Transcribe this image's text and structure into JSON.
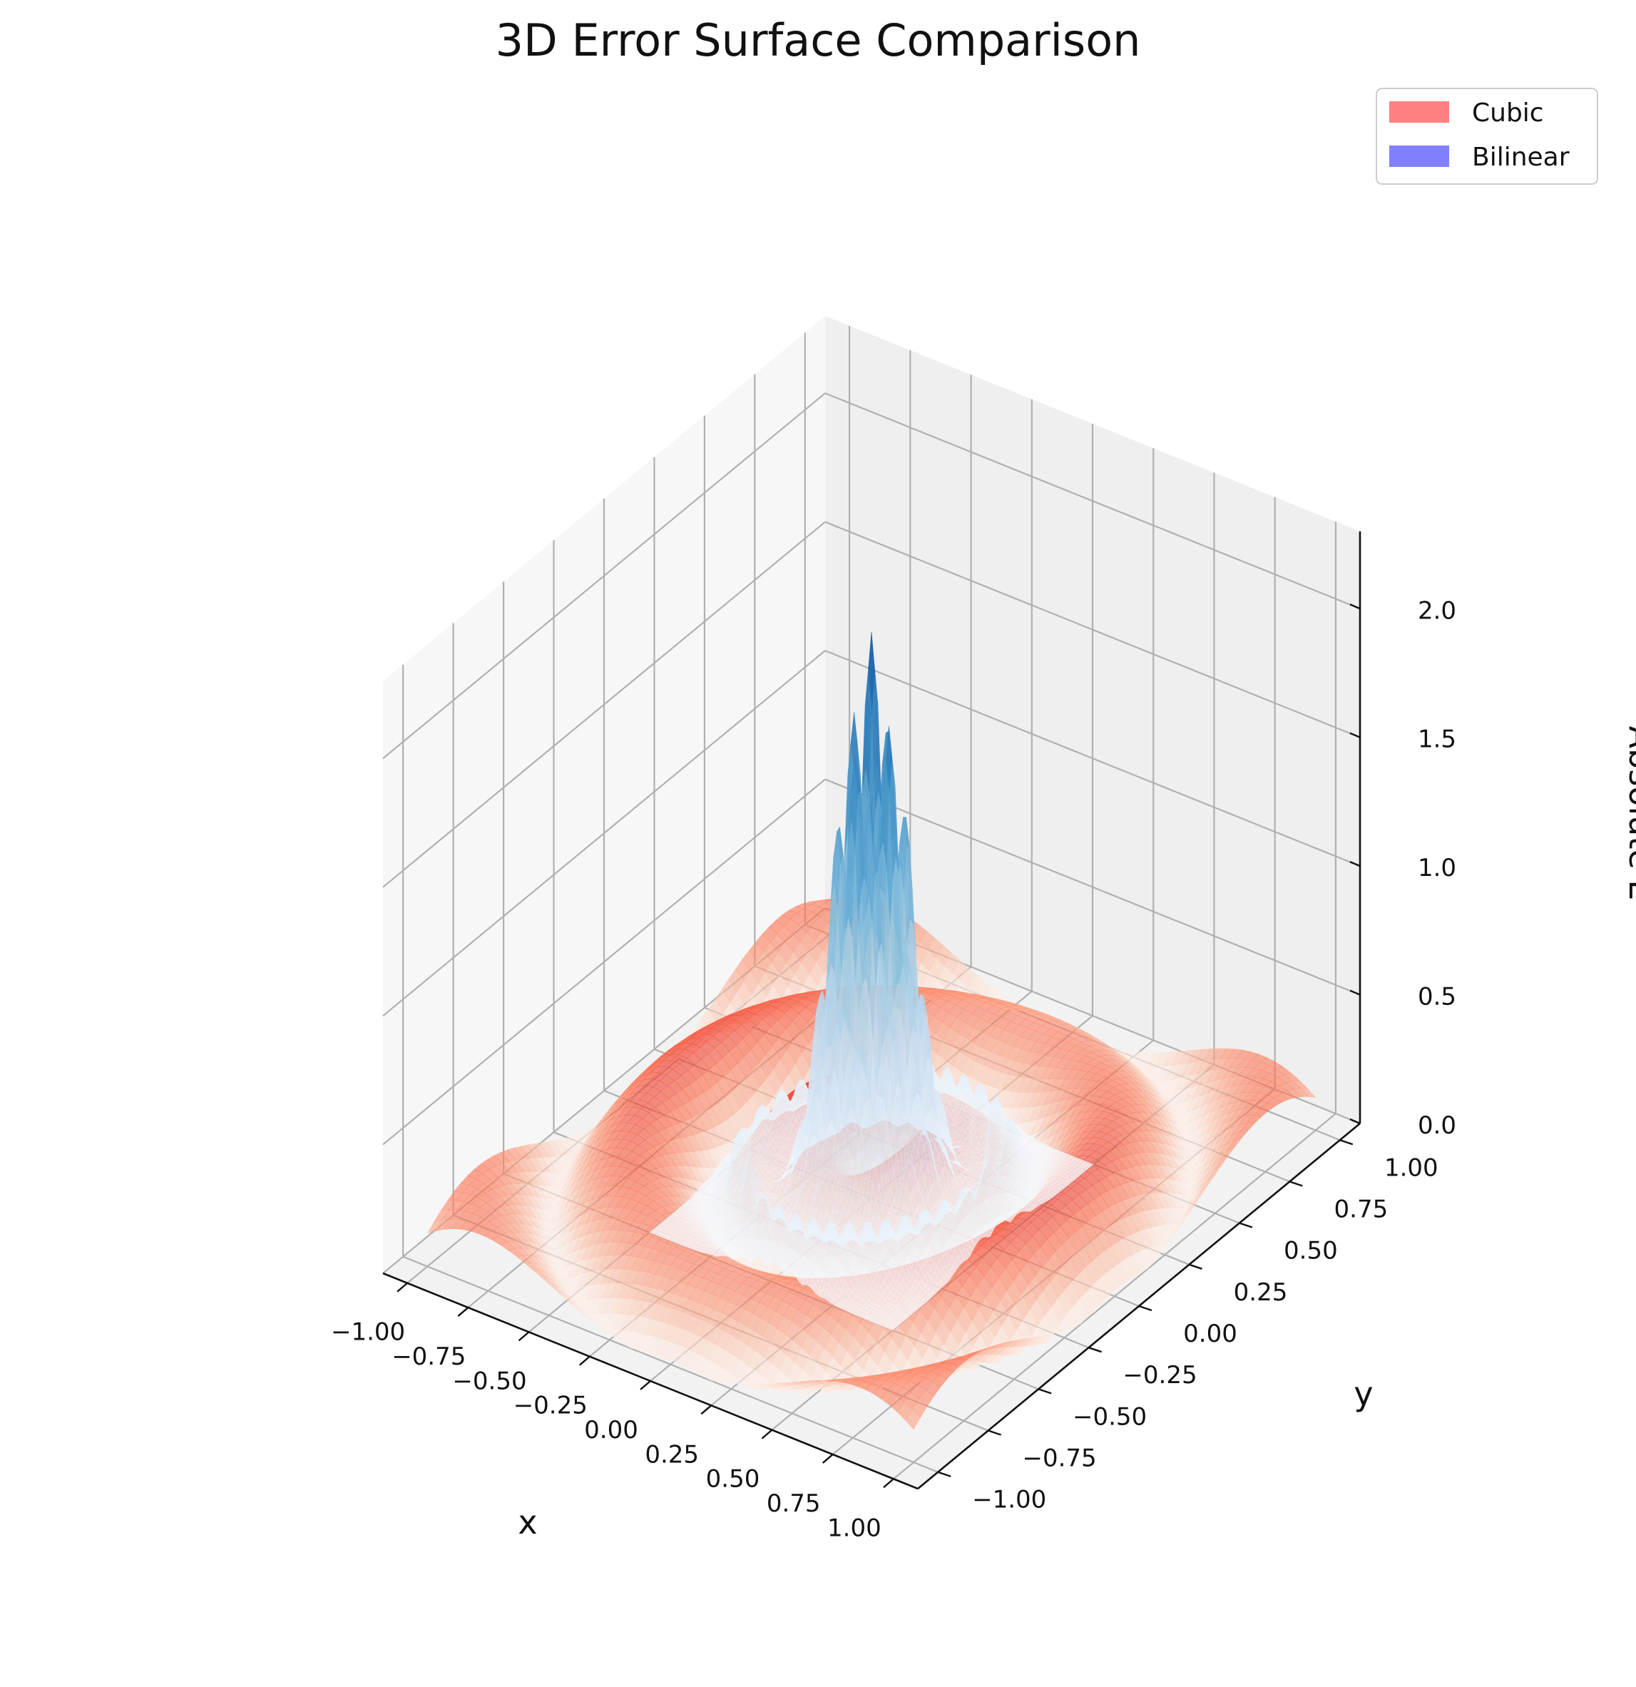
{
  "chart_data": {
    "type": "surface3d",
    "title": "3D Error Surface Comparison",
    "xlabel": "x",
    "ylabel": "y",
    "zlabel": "Absolute E",
    "xlim": [
      -1.1,
      1.1
    ],
    "ylim": [
      -1.1,
      1.1
    ],
    "zlim": [
      0,
      2.3
    ],
    "x_ticks": [
      -1.0,
      -0.75,
      -0.5,
      -0.25,
      0.0,
      0.25,
      0.5,
      0.75,
      1.0
    ],
    "x_tick_labels": [
      "−1.00",
      "−0.75",
      "−0.50",
      "−0.25",
      "0.00",
      "0.25",
      "0.50",
      "0.75",
      "1.00"
    ],
    "y_ticks": [
      -1.0,
      -0.75,
      -0.5,
      -0.25,
      0.0,
      0.25,
      0.5,
      0.75,
      1.0
    ],
    "y_tick_labels": [
      "−1.00",
      "−0.75",
      "−0.50",
      "−0.25",
      "0.00",
      "0.25",
      "0.50",
      "0.75",
      "1.00"
    ],
    "z_ticks": [
      0.0,
      0.5,
      1.0,
      1.5,
      2.0
    ],
    "z_tick_labels": [
      "0.0",
      "0.5",
      "1.0",
      "1.5",
      "2.0"
    ],
    "grid": true,
    "legend_position": "top-right",
    "series": [
      {
        "name": "Cubic",
        "legend_color": "#ff8080",
        "colormap": "Reds",
        "grid_range": [
          -1,
          1
        ],
        "peak_error": 0.35,
        "description_values": "ripple ring pattern, max about 0.35"
      },
      {
        "name": "Bilinear",
        "legend_color": "#8080ff",
        "colormap": "Blues",
        "grid_range": [
          -0.5,
          0.5
        ],
        "peak_error": 2.2,
        "description_values": "central spiky peak up to about 2.2"
      }
    ]
  }
}
